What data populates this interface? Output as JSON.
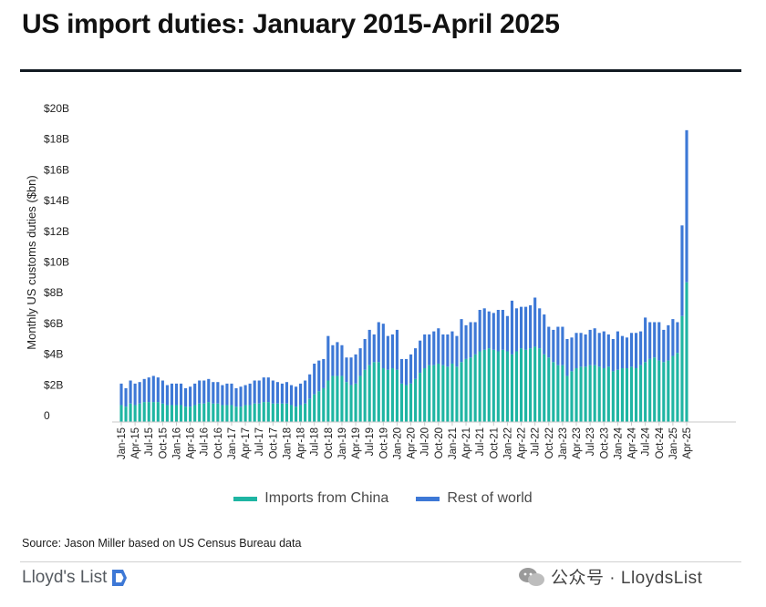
{
  "title": "US import duties: January 2015-April 2025",
  "source": "Source: Jason Miller based on US Census Bureau data",
  "brand": "Lloyd's List",
  "watermark": "公众号 · LloydsList",
  "colors": {
    "china": "#1fb5a3",
    "rest_of_world": "#3d78d6",
    "rule": "#121a22",
    "text": "#222222"
  },
  "chart_data": {
    "type": "bar",
    "stacked": true,
    "title": "US import duties: January 2015-April 2025",
    "ylabel": "Monthly US customs duties ($bn)",
    "xlabel": "",
    "ylim": [
      0,
      20
    ],
    "ytick_values": [
      0,
      2,
      4,
      6,
      8,
      10,
      12,
      14,
      16,
      18,
      20
    ],
    "ytick_labels": [
      "0",
      "$2B",
      "$4B",
      "$6B",
      "$8B",
      "$10B",
      "$12B",
      "$14B",
      "$16B",
      "$18B",
      "$20B"
    ],
    "legend_position": "bottom-center",
    "grid": false,
    "categories": [
      "Jan-15",
      "Feb-15",
      "Mar-15",
      "Apr-15",
      "May-15",
      "Jun-15",
      "Jul-15",
      "Aug-15",
      "Sep-15",
      "Oct-15",
      "Nov-15",
      "Dec-15",
      "Jan-16",
      "Feb-16",
      "Mar-16",
      "Apr-16",
      "May-16",
      "Jun-16",
      "Jul-16",
      "Aug-16",
      "Sep-16",
      "Oct-16",
      "Nov-16",
      "Dec-16",
      "Jan-17",
      "Feb-17",
      "Mar-17",
      "Apr-17",
      "May-17",
      "Jun-17",
      "Jul-17",
      "Aug-17",
      "Sep-17",
      "Oct-17",
      "Nov-17",
      "Dec-17",
      "Jan-18",
      "Feb-18",
      "Mar-18",
      "Apr-18",
      "May-18",
      "Jun-18",
      "Jul-18",
      "Aug-18",
      "Sep-18",
      "Oct-18",
      "Nov-18",
      "Dec-18",
      "Jan-19",
      "Feb-19",
      "Mar-19",
      "Apr-19",
      "May-19",
      "Jun-19",
      "Jul-19",
      "Aug-19",
      "Sep-19",
      "Oct-19",
      "Nov-19",
      "Dec-19",
      "Jan-20",
      "Feb-20",
      "Mar-20",
      "Apr-20",
      "May-20",
      "Jun-20",
      "Jul-20",
      "Aug-20",
      "Sep-20",
      "Oct-20",
      "Nov-20",
      "Dec-20",
      "Jan-21",
      "Feb-21",
      "Mar-21",
      "Apr-21",
      "May-21",
      "Jun-21",
      "Jul-21",
      "Aug-21",
      "Sep-21",
      "Oct-21",
      "Nov-21",
      "Dec-21",
      "Jan-22",
      "Feb-22",
      "Mar-22",
      "Apr-22",
      "May-22",
      "Jun-22",
      "Jul-22",
      "Aug-22",
      "Sep-22",
      "Oct-22",
      "Nov-22",
      "Dec-22",
      "Jan-23",
      "Feb-23",
      "Mar-23",
      "Apr-23",
      "May-23",
      "Jun-23",
      "Jul-23",
      "Aug-23",
      "Sep-23",
      "Oct-23",
      "Nov-23",
      "Dec-23",
      "Jan-24",
      "Feb-24",
      "Mar-24",
      "Apr-24",
      "May-24",
      "Jun-24",
      "Jul-24",
      "Aug-24",
      "Sep-24",
      "Oct-24",
      "Nov-24",
      "Dec-24",
      "Jan-25",
      "Feb-25",
      "Mar-25",
      "Apr-25"
    ],
    "tick_labels": [
      "Jan-15",
      "Apr-15",
      "Jul-15",
      "Oct-15",
      "Jan-16",
      "Apr-16",
      "Jul-16",
      "Oct-16",
      "Jan-17",
      "Apr-17",
      "Jul-17",
      "Oct-17",
      "Jan-18",
      "Apr-18",
      "Jul-18",
      "Oct-18",
      "Jan-19",
      "Apr-19",
      "Jul-19",
      "Oct-19",
      "Jan-20",
      "Apr-20",
      "Jul-20",
      "Oct-20",
      "Jan-21",
      "Apr-21",
      "Jul-21",
      "Oct-21",
      "Jan-22",
      "Apr-22",
      "Jul-22",
      "Oct-22",
      "Jan-23",
      "Apr-23",
      "Jul-23",
      "Oct-23",
      "Jan-24",
      "Apr-24",
      "Jul-24",
      "Oct-24",
      "Jan-25",
      "Apr-25"
    ],
    "series": [
      {
        "name": "Imports from China",
        "color": "#1fb5a3",
        "values": [
          1.1,
          1.0,
          1.2,
          1.1,
          1.2,
          1.3,
          1.3,
          1.3,
          1.3,
          1.2,
          1.1,
          1.1,
          1.1,
          1.1,
          1.0,
          1.0,
          1.1,
          1.2,
          1.2,
          1.3,
          1.2,
          1.2,
          1.1,
          1.1,
          1.1,
          1.0,
          1.0,
          1.1,
          1.1,
          1.2,
          1.2,
          1.3,
          1.3,
          1.2,
          1.2,
          1.2,
          1.2,
          1.1,
          1.0,
          1.1,
          1.2,
          1.5,
          1.8,
          2.0,
          2.2,
          2.7,
          3.0,
          3.0,
          3.0,
          2.6,
          2.4,
          2.5,
          3.0,
          3.4,
          3.7,
          3.9,
          3.9,
          3.5,
          3.4,
          3.5,
          3.4,
          2.5,
          2.4,
          2.5,
          2.8,
          3.2,
          3.5,
          3.7,
          3.7,
          3.8,
          3.7,
          3.6,
          3.8,
          3.6,
          3.9,
          4.1,
          4.2,
          4.4,
          4.6,
          4.7,
          4.8,
          4.7,
          4.6,
          4.7,
          4.6,
          4.4,
          4.6,
          4.8,
          4.7,
          4.8,
          4.9,
          4.8,
          4.4,
          4.2,
          3.9,
          3.7,
          3.7,
          3.0,
          3.3,
          3.5,
          3.6,
          3.6,
          3.7,
          3.7,
          3.6,
          3.5,
          3.6,
          3.3,
          3.4,
          3.5,
          3.5,
          3.6,
          3.5,
          3.7,
          3.9,
          4.1,
          4.2,
          4.0,
          3.9,
          4.0,
          4.3,
          4.5,
          6.9,
          9.1
        ]
      },
      {
        "name": "Rest of world",
        "color": "#3d78d6",
        "values": [
          1.4,
          1.2,
          1.5,
          1.4,
          1.4,
          1.5,
          1.6,
          1.7,
          1.6,
          1.5,
          1.3,
          1.4,
          1.4,
          1.4,
          1.2,
          1.3,
          1.4,
          1.5,
          1.5,
          1.5,
          1.4,
          1.4,
          1.3,
          1.4,
          1.4,
          1.2,
          1.3,
          1.3,
          1.4,
          1.5,
          1.5,
          1.6,
          1.6,
          1.5,
          1.4,
          1.3,
          1.4,
          1.3,
          1.3,
          1.4,
          1.5,
          1.6,
          2.0,
          2.0,
          1.9,
          2.9,
          2.0,
          2.2,
          2.0,
          1.6,
          1.8,
          1.9,
          1.8,
          2.0,
          2.3,
          1.8,
          2.6,
          2.9,
          2.2,
          2.2,
          2.6,
          1.6,
          1.7,
          1.9,
          2.0,
          2.1,
          2.2,
          2.0,
          2.2,
          2.3,
          2.0,
          2.1,
          2.1,
          2.0,
          2.8,
          2.2,
          2.3,
          2.1,
          2.7,
          2.7,
          2.4,
          2.4,
          2.7,
          2.6,
          2.3,
          3.5,
          2.8,
          2.7,
          2.8,
          2.8,
          3.2,
          2.6,
          2.6,
          2.0,
          2.1,
          2.5,
          2.5,
          2.4,
          2.2,
          2.3,
          2.2,
          2.1,
          2.3,
          2.4,
          2.2,
          2.4,
          2.1,
          2.1,
          2.5,
          2.1,
          2.0,
          2.2,
          2.3,
          2.2,
          2.9,
          2.4,
          2.3,
          2.5,
          2.1,
          2.3,
          2.4,
          2.0,
          5.9,
          9.9
        ]
      }
    ]
  }
}
